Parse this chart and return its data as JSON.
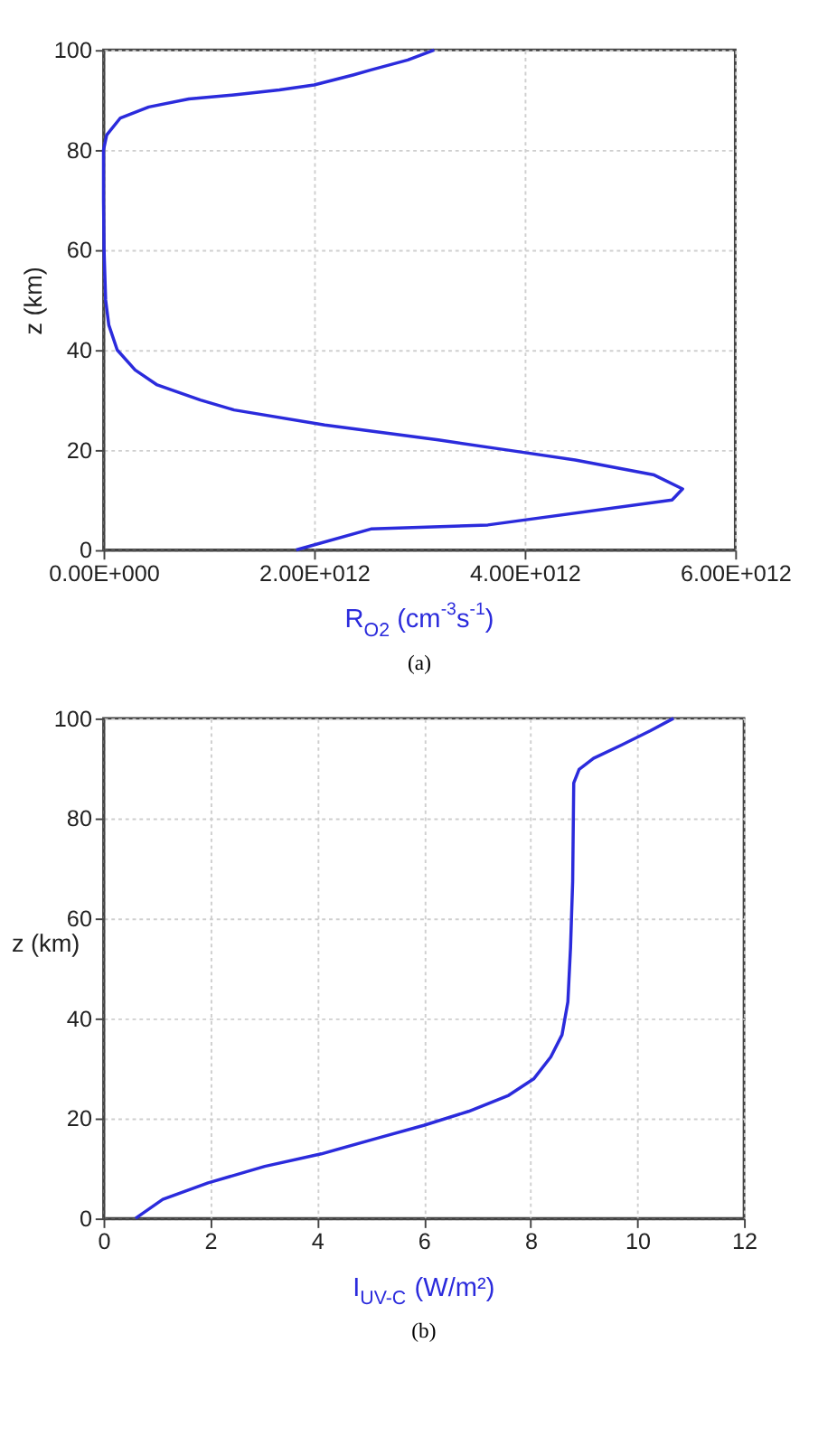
{
  "chart_data": [
    {
      "type": "line",
      "xlabel": "R$_{O2}$ (cm$^{-3}$s$^{-1}$)",
      "ylabel": "z (km)",
      "annotations": [
        "(a)"
      ],
      "xlim": [
        0,
        6000000000000.0
      ],
      "xticks": [
        {
          "value": 0,
          "label": "0.00E+000"
        },
        {
          "value": 2000000000000.0,
          "label": "2.00E+012"
        },
        {
          "value": 4000000000000.0,
          "label": "4.00E+012"
        },
        {
          "value": 6000000000000.0,
          "label": "6.00E+012"
        }
      ],
      "ylim": [
        0,
        100
      ],
      "yticks": [
        0,
        20,
        40,
        60,
        80,
        100
      ],
      "grid": true,
      "line_style": "solid",
      "marker": "none",
      "series": [
        {
          "color": "#2b2bdc",
          "x": [
            1830000000000.0,
            2540000000000.0,
            3650000000000.0,
            5400000000000.0,
            5500000000000.0,
            5230000000000.0,
            4480000000000.0,
            3830000000000.0,
            3180000000000.0,
            2100000000000.0,
            1240000000000.0,
            920000000000.0,
            510000000000.0,
            300000000000.0,
            130000000000.0,
            50000000000.0,
            20000000000.0,
            5000000000.0,
            0,
            0,
            30000000000.0,
            160000000000.0,
            430000000000.0,
            810000000000.0,
            1240000000000.0,
            1670000000000.0,
            2000000000000.0,
            2370000000000.0,
            2540000000000.0,
            2890000000000.0,
            3140000000000.0
          ],
          "values": [
            0,
            4.2,
            5,
            10,
            12.2,
            15,
            18,
            20,
            22,
            25,
            28,
            30,
            33,
            36,
            40,
            45,
            50,
            60,
            70,
            80,
            83,
            86.4,
            88.6,
            90.2,
            91,
            92,
            93,
            95,
            96,
            98,
            100
          ]
        }
      ]
    },
    {
      "type": "line",
      "xlabel": "I$_{UV-C}$ (W/m²)",
      "ylabel": "z (km)",
      "annotations": [
        "(b)"
      ],
      "xlim": [
        0,
        12
      ],
      "xticks": [
        0,
        2,
        4,
        6,
        8,
        10,
        12
      ],
      "ylim": [
        0,
        100
      ],
      "yticks": [
        0,
        20,
        40,
        60,
        80,
        100
      ],
      "grid": true,
      "line_style": "solid",
      "marker": "none",
      "series": [
        {
          "color": "#2b2bdc",
          "x": [
            0.6,
            1.11,
            1.96,
            3.02,
            4.08,
            5.15,
            6.0,
            6.84,
            7.59,
            8.06,
            8.38,
            8.59,
            8.7,
            8.75,
            8.79,
            8.81,
            8.91,
            9.18,
            9.71,
            10.24,
            10.68
          ],
          "values": [
            0,
            3.8,
            7.1,
            10.4,
            12.9,
            16.1,
            18.6,
            21.4,
            24.6,
            27.9,
            32.3,
            36.7,
            43.3,
            54.2,
            67.4,
            87.1,
            89.8,
            92,
            94.7,
            97.5,
            100
          ]
        }
      ]
    }
  ]
}
